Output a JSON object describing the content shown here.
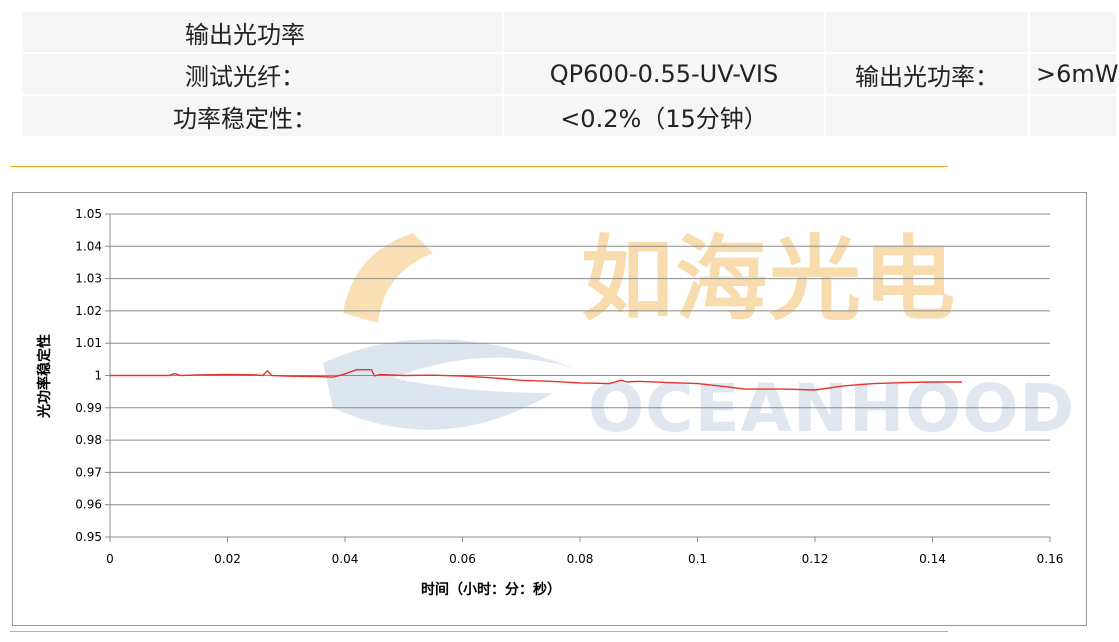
{
  "spec_table": {
    "rows": [
      [
        "输出光功率",
        "",
        "",
        ""
      ],
      [
        "测试光纤：",
        "QP600-0.55-UV-VIS",
        "输出光功率：",
        ">6mW"
      ],
      [
        "功率稳定性：",
        "<0.2%（15分钟）",
        "",
        ""
      ]
    ]
  },
  "watermark": {
    "brand_cn": "如海光电",
    "brand_en": "OCEANHOOD",
    "colors": {
      "orange": "#f9d9a6",
      "blue": "#dfe6ef"
    }
  },
  "chart_data": {
    "type": "line",
    "xlabel": "时间（小时：分：秒）",
    "ylabel": "光功率稳定性",
    "xlim": [
      0,
      0.16
    ],
    "ylim": [
      0.95,
      1.05
    ],
    "x_ticks": [
      "0",
      "0.02",
      "0.04",
      "0.06",
      "0.08",
      "0.1",
      "0.12",
      "0.14",
      "0.16"
    ],
    "y_ticks": [
      "0.95",
      "0.96",
      "0.97",
      "0.98",
      "0.99",
      "1",
      "1.01",
      "1.02",
      "1.03",
      "1.04",
      "1.05"
    ],
    "grid": true,
    "line_color": "#e8322f",
    "series": [
      {
        "x": [
          0,
          0.005,
          0.01,
          0.011,
          0.012,
          0.015,
          0.02,
          0.025,
          0.026,
          0.0268,
          0.0275,
          0.03,
          0.035,
          0.038,
          0.04,
          0.042,
          0.0445,
          0.045,
          0.046,
          0.05,
          0.055,
          0.06,
          0.065,
          0.07,
          0.075,
          0.08,
          0.085,
          0.087,
          0.088,
          0.09,
          0.095,
          0.1,
          0.105,
          0.108,
          0.11,
          0.115,
          0.12,
          0.125,
          0.13,
          0.135,
          0.14,
          0.145
        ],
        "y": [
          1.0,
          1.0,
          1.0,
          1.0006,
          1.0,
          1.0002,
          1.0003,
          1.0002,
          1.0,
          1.0015,
          1.0,
          0.9998,
          0.9997,
          0.9995,
          1.0005,
          1.0018,
          1.0018,
          0.9999,
          1.0003,
          1.0,
          1.0001,
          0.9998,
          0.9993,
          0.9985,
          0.9982,
          0.9977,
          0.9975,
          0.9985,
          0.998,
          0.9982,
          0.9978,
          0.9975,
          0.9965,
          0.9958,
          0.9958,
          0.9958,
          0.9955,
          0.9968,
          0.9975,
          0.9978,
          0.998,
          0.998
        ]
      }
    ]
  }
}
